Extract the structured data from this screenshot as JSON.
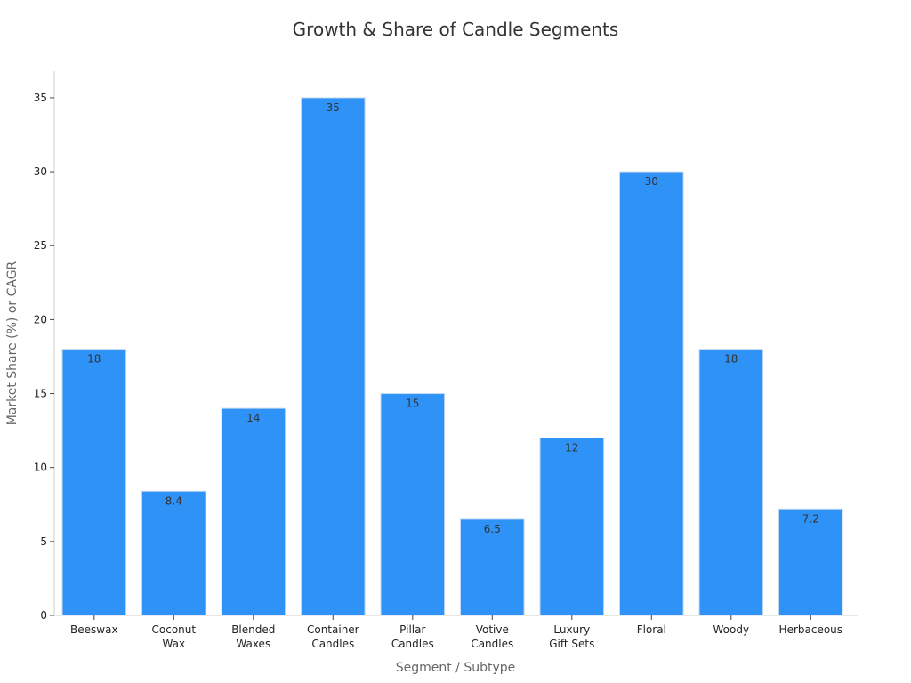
{
  "chart_data": {
    "type": "bar",
    "title": "Growth & Share of Candle Segments",
    "xlabel": "Segment / Subtype",
    "ylabel": "Market Share (%) or CAGR",
    "categories": [
      [
        "Beeswax"
      ],
      [
        "Coconut",
        "Wax"
      ],
      [
        "Blended",
        "Waxes"
      ],
      [
        "Container",
        "Candles"
      ],
      [
        "Pillar",
        "Candles"
      ],
      [
        "Votive",
        "Candles"
      ],
      [
        "Luxury",
        "Gift Sets"
      ],
      [
        "Floral"
      ],
      [
        "Woody"
      ],
      [
        "Herbaceous"
      ]
    ],
    "values": [
      18,
      8.4,
      14,
      35,
      15,
      6.5,
      12,
      30,
      18,
      7.2
    ],
    "data_labels": [
      "18",
      "8.4",
      "14",
      "35",
      "15",
      "6.5",
      "12",
      "30",
      "18",
      "7.2"
    ],
    "ylim": [
      0,
      36.8
    ],
    "yticks": [
      0,
      5,
      10,
      15,
      20,
      25,
      30,
      35
    ],
    "bar_color": "#2f92f6",
    "grid": false,
    "legend": "none"
  }
}
